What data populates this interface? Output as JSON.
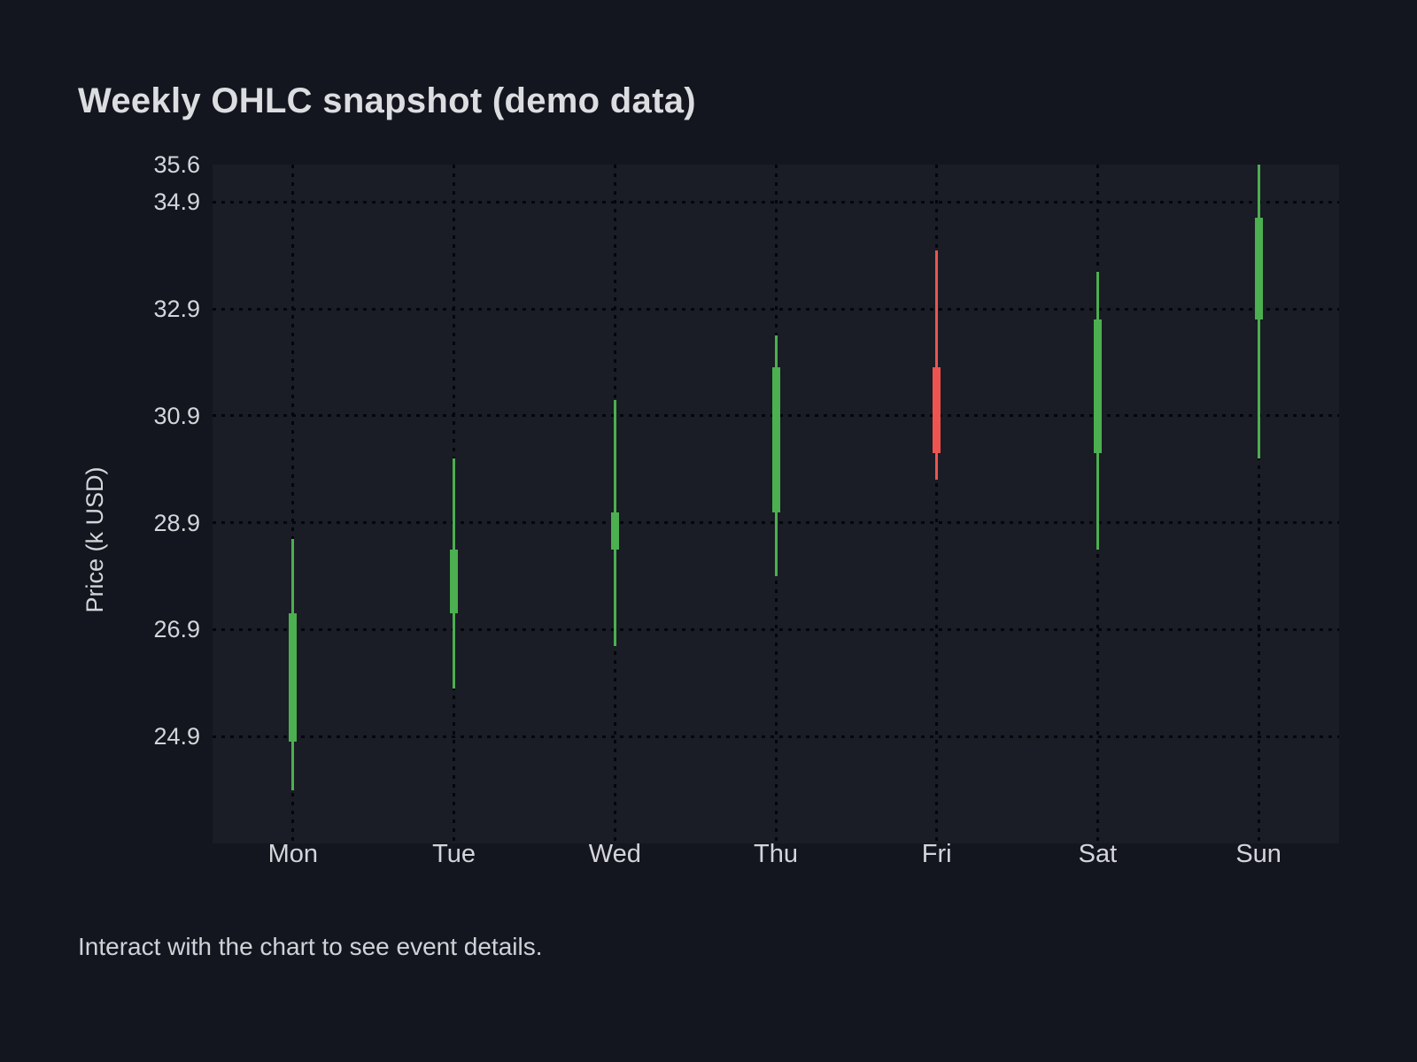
{
  "header": {
    "title": "Weekly OHLC snapshot (demo data)"
  },
  "footer": {
    "caption": "Interact with the chart to see event details."
  },
  "chart_data": {
    "type": "candlestick",
    "title": "Weekly OHLC snapshot (demo data)",
    "xlabel": "",
    "ylabel": "Price (k USD)",
    "categories": [
      "Mon",
      "Tue",
      "Wed",
      "Thu",
      "Fri",
      "Sat",
      "Sun"
    ],
    "series": [
      {
        "name": "Weekly OHLC",
        "ohlc": [
          {
            "open": 24.8,
            "high": 28.6,
            "low": 23.9,
            "close": 27.2
          },
          {
            "open": 27.2,
            "high": 30.1,
            "low": 25.8,
            "close": 28.4
          },
          {
            "open": 28.4,
            "high": 31.2,
            "low": 26.6,
            "close": 29.1
          },
          {
            "open": 29.1,
            "high": 32.4,
            "low": 27.9,
            "close": 31.8
          },
          {
            "open": 31.8,
            "high": 34.0,
            "low": 29.7,
            "close": 30.2
          },
          {
            "open": 30.2,
            "high": 33.6,
            "low": 28.4,
            "close": 32.7
          },
          {
            "open": 32.7,
            "high": 35.6,
            "low": 30.1,
            "close": 34.6
          }
        ]
      }
    ],
    "ylim": [
      22.9,
      35.6
    ],
    "yticks": [
      "35.6",
      "34.9",
      "32.9",
      "30.9",
      "28.9",
      "26.9",
      "24.9"
    ],
    "grid": {
      "style": "dotted",
      "color": "#04060a",
      "top_tick_has_gridline": false
    },
    "legend": "none",
    "colors": {
      "up": "#4caf50",
      "down": "#ef5350",
      "background": "#13161e",
      "panel": "#1b1f28",
      "text": "#d3d5da"
    }
  }
}
